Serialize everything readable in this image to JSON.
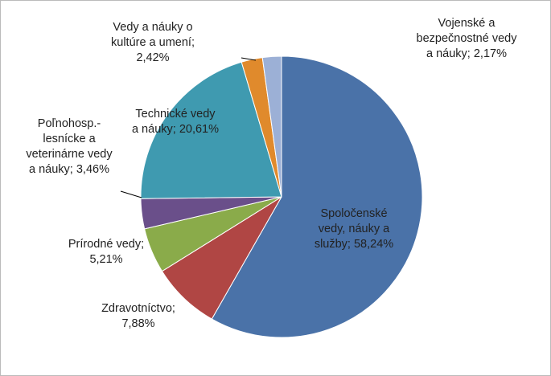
{
  "chart_data": {
    "type": "pie",
    "categories": [
      "Spoločenské vedy, náuky a služby",
      "Zdravotníctvo",
      "Prírodné vedy",
      "Poľnohosp.- lesnícke a veterinárne vedy a náuky",
      "Technické vedy a náuky",
      "Vedy a náuky o kultúre a umení",
      "Vojenské a bezpečnostné vedy a náuky"
    ],
    "values": [
      58.24,
      7.88,
      5.21,
      3.46,
      20.61,
      2.42,
      2.17
    ],
    "value_labels": [
      "58,24%",
      "7,88%",
      "5,21%",
      "3,46%",
      "20,61%",
      "2,42%",
      "2,17%"
    ],
    "label_separator": "; ",
    "colors": [
      "#4a72a8",
      "#b04644",
      "#8aab4a",
      "#6a4f8a",
      "#3f9ab0",
      "#e08a2c",
      "#9cb0d6"
    ]
  }
}
